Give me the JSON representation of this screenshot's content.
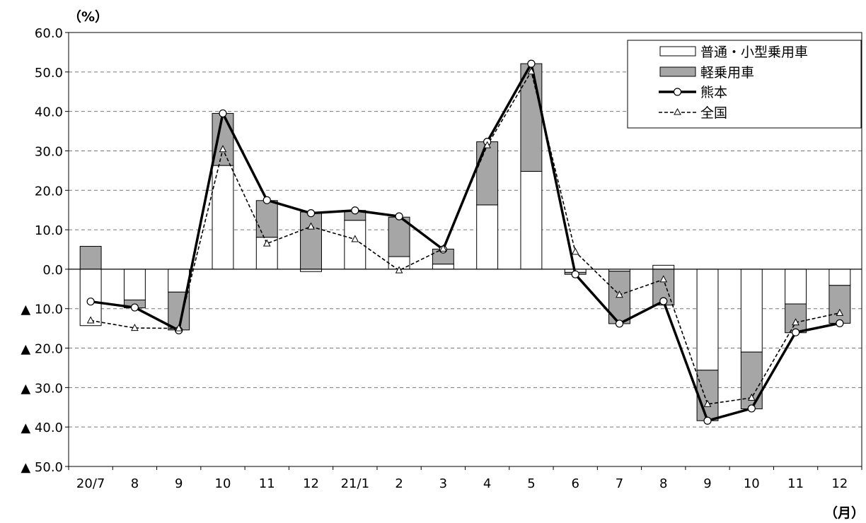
{
  "chart_data": {
    "type": "bar",
    "subtype": "stacked bar with line overlay",
    "y_unit_label": "（%）",
    "x_unit_label": "（月）",
    "ylim": [
      -50,
      60
    ],
    "y_ticks": [
      {
        "value": 60,
        "label": "60.0"
      },
      {
        "value": 50,
        "label": "50.0"
      },
      {
        "value": 40,
        "label": "40.0"
      },
      {
        "value": 30,
        "label": "30.0"
      },
      {
        "value": 20,
        "label": "20.0"
      },
      {
        "value": 10,
        "label": "10.0"
      },
      {
        "value": 0,
        "label": "0.0"
      },
      {
        "value": -10,
        "label": "▲ 10.0"
      },
      {
        "value": -20,
        "label": "▲ 20.0"
      },
      {
        "value": -30,
        "label": "▲ 30.0"
      },
      {
        "value": -40,
        "label": "▲ 40.0"
      },
      {
        "value": -50,
        "label": "▲ 50.0"
      }
    ],
    "grid": "horizontal dashed",
    "legend_position": "top-right",
    "categories": [
      "20/7",
      "8",
      "9",
      "10",
      "11",
      "12",
      "21/1",
      "2",
      "3",
      "4",
      "5",
      "6",
      "7",
      "8",
      "9",
      "10",
      "11",
      "12"
    ],
    "series": [
      {
        "name": "普通・小型乗用車",
        "kind": "bar",
        "color": "#ffffff",
        "values": [
          -14.3,
          -7.8,
          -5.8,
          26.3,
          8.1,
          -0.6,
          12.4,
          3.2,
          1.3,
          16.3,
          24.8,
          -0.8,
          -0.5,
          1.0,
          -25.6,
          -21.0,
          -8.8,
          -4.1
        ]
      },
      {
        "name": "軽乗用車",
        "kind": "bar",
        "color": "#a6a6a6",
        "values": [
          5.8,
          -2.0,
          -9.6,
          13.2,
          9.3,
          14.5,
          2.5,
          10.0,
          3.8,
          16.0,
          27.3,
          -0.5,
          -13.3,
          -9.1,
          -12.8,
          -14.4,
          -7.3,
          -9.6
        ]
      },
      {
        "name": "熊本",
        "kind": "line",
        "color": "#000000",
        "values": [
          -8.2,
          -9.7,
          -15.5,
          39.5,
          17.5,
          14.2,
          14.9,
          13.4,
          5.0,
          32.3,
          52.1,
          -1.3,
          -13.8,
          -8.1,
          -38.4,
          -35.3,
          -16.0,
          -13.7
        ]
      },
      {
        "name": "全国",
        "kind": "line",
        "style": "dashed",
        "color": "#000000",
        "values": [
          -13.0,
          -14.9,
          -15.0,
          30.4,
          6.5,
          10.8,
          7.6,
          -0.3,
          5.2,
          31.4,
          50.1,
          4.4,
          -6.5,
          -2.6,
          -34.2,
          -32.6,
          -13.5,
          -11.1
        ]
      }
    ]
  }
}
